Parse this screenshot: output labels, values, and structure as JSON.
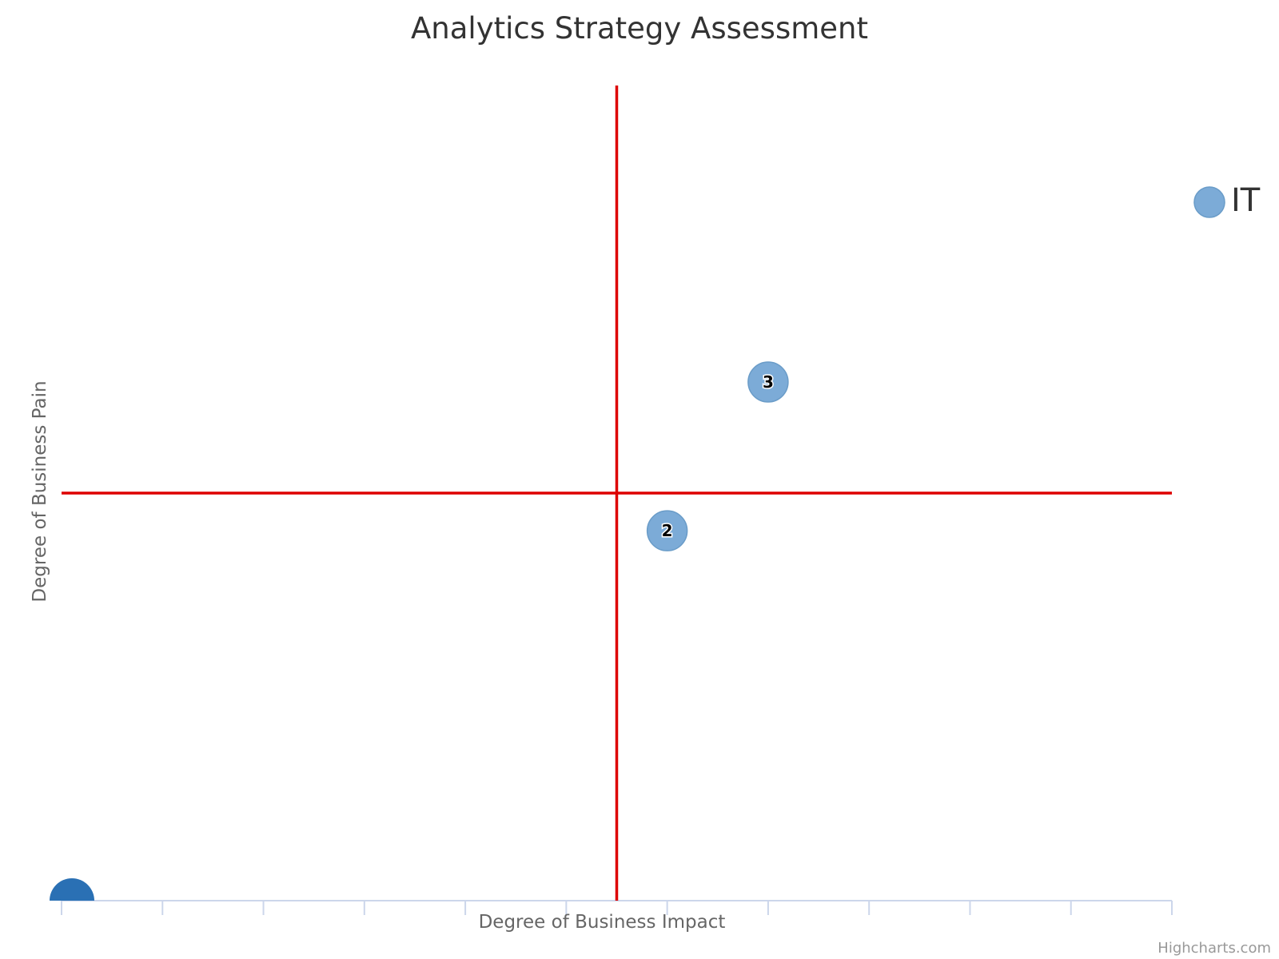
{
  "chart_data": {
    "type": "bubble",
    "title": "Analytics Strategy Assessment",
    "xlabel": "Degree of Business Impact",
    "ylabel": "Degree of Business Pain",
    "xlim": [
      0,
      11
    ],
    "ylim": [
      0,
      8
    ],
    "x_tick_count": 12,
    "x_tick_labels_shown": false,
    "grid": false,
    "plot_lines": {
      "x": 5.5,
      "y": 4,
      "color": "#dd0000"
    },
    "series": [
      {
        "name": "IT",
        "color": "#7cabd7",
        "points": [
          {
            "x": 6,
            "y": 3.63,
            "label": "2"
          },
          {
            "x": 7,
            "y": 5.09,
            "label": "3"
          }
        ]
      }
    ],
    "extra_marker": {
      "x": 0,
      "y": 0,
      "color": "#2a70b4"
    },
    "legend": {
      "position": "top-right",
      "entries": [
        "IT"
      ]
    },
    "credits": "Highcharts.com"
  }
}
